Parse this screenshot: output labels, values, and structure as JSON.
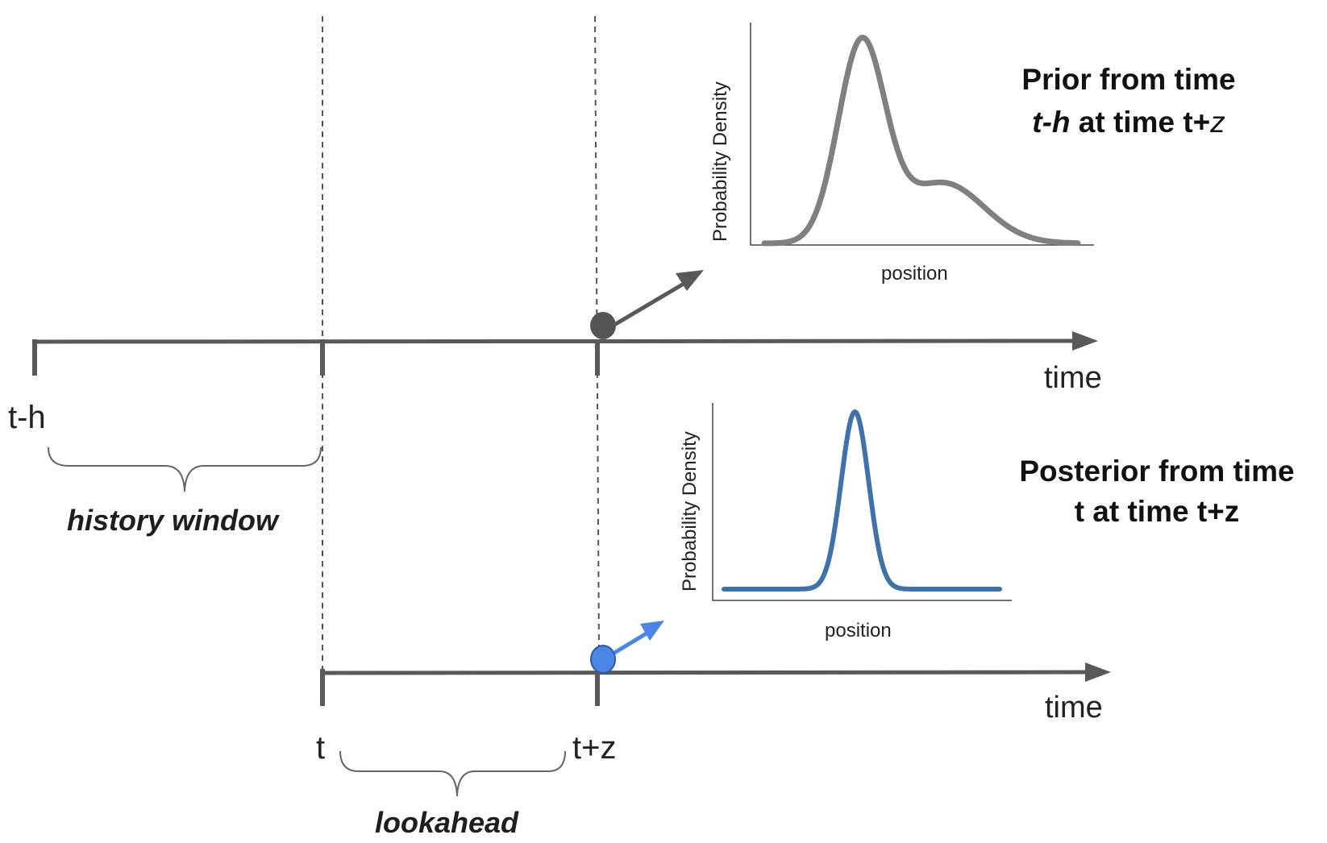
{
  "timeline_top": {
    "ticks": [
      "t-h"
    ],
    "axis_label": "time",
    "brace_label": "history window"
  },
  "timeline_bottom": {
    "ticks": [
      "t",
      "t+z"
    ],
    "axis_label": "time",
    "brace_label": "lookahead"
  },
  "prior": {
    "title_line1": "Prior from time",
    "title_line2_italic": "t-h",
    "title_line2_mid": " at time t+",
    "title_line2_end": "z",
    "xlabel": "position",
    "ylabel": "Probability Density",
    "line_color": "#808080",
    "marker_color": "#555555"
  },
  "posterior": {
    "title_line1": "Posterior from time",
    "title_line2": "t at time t+z",
    "xlabel": "position",
    "ylabel": "Probability Density",
    "line_color": "#3f72a8",
    "marker_color": "#4a86e8"
  },
  "colors": {
    "axis": "#595959",
    "dashed": "#555555"
  }
}
